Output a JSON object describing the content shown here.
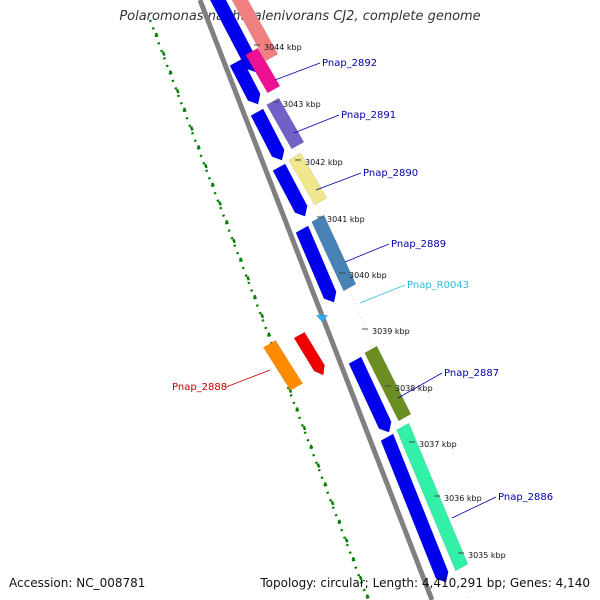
{
  "title": "Polaromonas naphthalenivorans CJ2, complete genome",
  "accession_text": "Accession: NC_008781",
  "summary_text": "Topology: circular; Length: 4,410,291 bp; Genes: 4,140",
  "colors": {
    "backbone": "#808080",
    "cds_forward": "#0000ee",
    "gc_skew": "#008000",
    "gene_label_forward": "#0000aa",
    "gene_label_reverse": "#cc0000",
    "rna_label": "#33bbdd"
  },
  "scale_ticks": [
    "3044 kbp",
    "3043 kbp",
    "3042 kbp",
    "3041 kbp",
    "3040 kbp",
    "3039 kbp",
    "3038 kbp",
    "3037 kbp",
    "3036 kbp",
    "3035 kbp"
  ],
  "gene_labels": [
    {
      "id": "Pnap_2892",
      "color": "#0000aa"
    },
    {
      "id": "Pnap_2891",
      "color": "#0000aa"
    },
    {
      "id": "Pnap_2890",
      "color": "#0000aa"
    },
    {
      "id": "Pnap_2889",
      "color": "#0000aa"
    },
    {
      "id": "Pnap_R0043",
      "color": "#33bbdd"
    },
    {
      "id": "Pnap_2888",
      "color": "#cc0000"
    },
    {
      "id": "Pnap_2887",
      "color": "#0000aa"
    },
    {
      "id": "Pnap_2886",
      "color": "#0000aa"
    }
  ],
  "feature_colors": [
    "#f08080",
    "#ee1090",
    "#7060c8",
    "#f0e68c",
    "#4682b4",
    "#6b8e23",
    "#33f0a8",
    "#ff8c00",
    "#ee0000"
  ]
}
